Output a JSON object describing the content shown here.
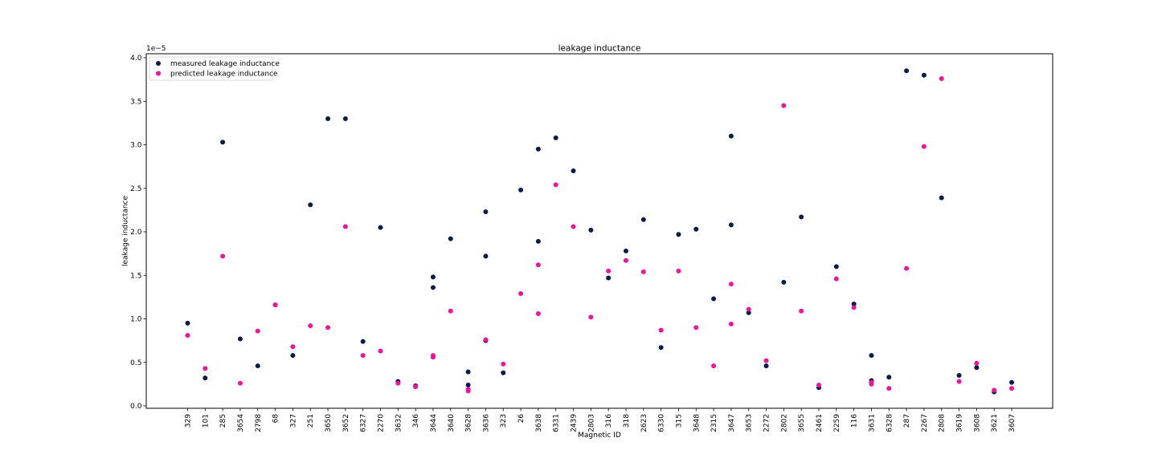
{
  "chart_data": {
    "type": "scatter",
    "title": "leakage inductance",
    "xlabel": "Magnetic ID",
    "ylabel": "leakage inductance",
    "y_offset_label": "1e−5",
    "ylim": [
      0.0,
      4.0
    ],
    "yticks": [
      "0.0",
      "0.5",
      "1.0",
      "1.5",
      "2.0",
      "2.5",
      "3.0",
      "3.5",
      "4.0"
    ],
    "grid": false,
    "legend_position": "top-left",
    "categories": [
      "329",
      "101",
      "285",
      "3654",
      "2798",
      "68",
      "327",
      "251",
      "3650",
      "3652",
      "6327",
      "2270",
      "3632",
      "346",
      "3644",
      "3640",
      "3628",
      "3636",
      "323",
      "26",
      "3638",
      "6331",
      "2439",
      "2803",
      "316",
      "318",
      "2623",
      "6330",
      "315",
      "3648",
      "2315",
      "3647",
      "3653",
      "2272",
      "2802",
      "3655",
      "2461",
      "2259",
      "116",
      "3631",
      "6328",
      "287",
      "2267",
      "2808",
      "3619",
      "3608",
      "3621",
      "3607"
    ],
    "series": [
      {
        "name": "measured leakage inductance",
        "color": "#0d1a4a",
        "points": [
          [
            "329",
            0.95
          ],
          [
            "101",
            0.32
          ],
          [
            "285",
            3.03
          ],
          [
            "3654",
            0.77
          ],
          [
            "2798",
            0.46
          ],
          [
            "68",
            1.16
          ],
          [
            "327",
            0.58
          ],
          [
            "251",
            2.31
          ],
          [
            "3650",
            3.3
          ],
          [
            "3652",
            3.3
          ],
          [
            "6327",
            0.74
          ],
          [
            "2270",
            2.05
          ],
          [
            "3632",
            0.28
          ],
          [
            "346",
            0.23
          ],
          [
            "3644",
            1.48
          ],
          [
            "3644",
            1.36
          ],
          [
            "3640",
            1.92
          ],
          [
            "3628",
            0.39
          ],
          [
            "3628",
            0.24
          ],
          [
            "3636",
            2.23
          ],
          [
            "3636",
            1.72
          ],
          [
            "3636",
            0.75
          ],
          [
            "323",
            0.38
          ],
          [
            "26",
            2.48
          ],
          [
            "3638",
            2.95
          ],
          [
            "3638",
            1.89
          ],
          [
            "6331",
            3.08
          ],
          [
            "2439",
            2.7
          ],
          [
            "2803",
            2.02
          ],
          [
            "316",
            1.47
          ],
          [
            "318",
            1.78
          ],
          [
            "2623",
            2.14
          ],
          [
            "6330",
            0.67
          ],
          [
            "315",
            1.97
          ],
          [
            "3648",
            2.03
          ],
          [
            "2315",
            1.23
          ],
          [
            "3647",
            3.1
          ],
          [
            "3647",
            2.08
          ],
          [
            "3653",
            1.07
          ],
          [
            "2272",
            0.46
          ],
          [
            "2802",
            1.42
          ],
          [
            "3655",
            2.17
          ],
          [
            "2461",
            0.21
          ],
          [
            "2259",
            1.6
          ],
          [
            "116",
            1.17
          ],
          [
            "3631",
            0.58
          ],
          [
            "3631",
            0.29
          ],
          [
            "6328",
            0.33
          ],
          [
            "287",
            3.85
          ],
          [
            "2267",
            3.8
          ],
          [
            "2808",
            2.39
          ],
          [
            "3619",
            0.35
          ],
          [
            "3608",
            0.44
          ],
          [
            "3621",
            0.16
          ],
          [
            "3607",
            0.27
          ]
        ]
      },
      {
        "name": "predicted leakage inductance",
        "color": "#f0149b",
        "points": [
          [
            "329",
            0.81
          ],
          [
            "101",
            0.43
          ],
          [
            "285",
            1.72
          ],
          [
            "3654",
            0.26
          ],
          [
            "2798",
            0.86
          ],
          [
            "68",
            1.16
          ],
          [
            "327",
            0.68
          ],
          [
            "251",
            0.92
          ],
          [
            "3650",
            0.9
          ],
          [
            "3652",
            2.06
          ],
          [
            "6327",
            0.58
          ],
          [
            "2270",
            0.63
          ],
          [
            "3632",
            0.26
          ],
          [
            "346",
            0.22
          ],
          [
            "3644",
            0.58
          ],
          [
            "3644",
            0.56
          ],
          [
            "3640",
            1.09
          ],
          [
            "3628",
            0.17
          ],
          [
            "3628",
            0.19
          ],
          [
            "3636",
            0.76
          ],
          [
            "323",
            0.48
          ],
          [
            "26",
            1.29
          ],
          [
            "3638",
            1.62
          ],
          [
            "3638",
            1.06
          ],
          [
            "6331",
            2.54
          ],
          [
            "2439",
            2.06
          ],
          [
            "2803",
            1.02
          ],
          [
            "316",
            1.55
          ],
          [
            "318",
            1.67
          ],
          [
            "2623",
            1.54
          ],
          [
            "6330",
            0.87
          ],
          [
            "315",
            1.55
          ],
          [
            "3648",
            0.9
          ],
          [
            "2315",
            0.46
          ],
          [
            "3647",
            1.4
          ],
          [
            "3647",
            0.94
          ],
          [
            "3653",
            1.11
          ],
          [
            "2272",
            0.52
          ],
          [
            "2802",
            3.45
          ],
          [
            "3655",
            1.09
          ],
          [
            "2461",
            0.24
          ],
          [
            "2259",
            1.46
          ],
          [
            "116",
            1.13
          ],
          [
            "3631",
            0.25
          ],
          [
            "3631",
            0.27
          ],
          [
            "6328",
            0.2
          ],
          [
            "287",
            1.58
          ],
          [
            "2267",
            2.98
          ],
          [
            "2808",
            3.76
          ],
          [
            "3619",
            0.28
          ],
          [
            "3608",
            0.49
          ],
          [
            "3621",
            0.18
          ],
          [
            "3607",
            0.2
          ]
        ]
      }
    ]
  }
}
